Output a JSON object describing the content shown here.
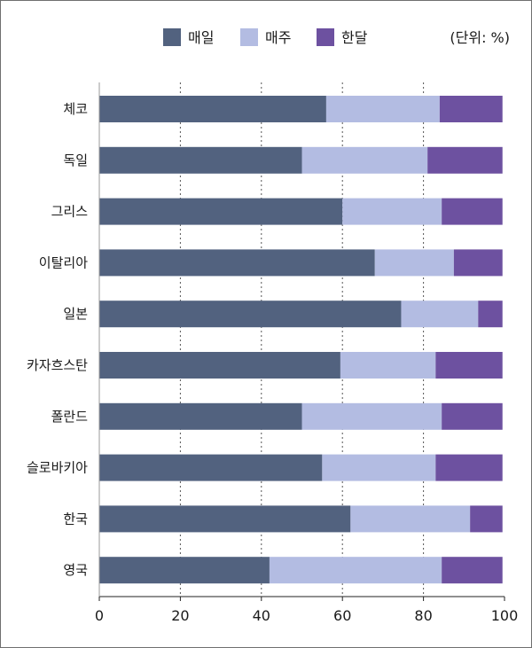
{
  "chart_data": {
    "type": "bar",
    "orientation": "horizontal",
    "stacked": true,
    "unit_note": "(단위: %)",
    "categories": [
      "체코",
      "독일",
      "그리스",
      "이탈리아",
      "일본",
      "카자흐스탄",
      "폴란드",
      "슬로바키아",
      "한국",
      "영국"
    ],
    "series": [
      {
        "name": "매일",
        "color": "#52627f",
        "values": [
          56,
          50,
          60,
          68,
          74.5,
          59.5,
          50,
          55,
          62,
          42
        ]
      },
      {
        "name": "매주",
        "color": "#b3bce2",
        "values": [
          28,
          31,
          24.5,
          19.5,
          19,
          23.5,
          34.5,
          28,
          29.5,
          42.5
        ]
      },
      {
        "name": "한달",
        "color": "#6d51a0",
        "values": [
          15.5,
          18.5,
          15,
          12,
          6,
          16.5,
          15,
          16.5,
          8,
          15
        ]
      }
    ],
    "xlim": [
      0,
      100
    ],
    "xticks": [
      0,
      20,
      40,
      60,
      80,
      100
    ],
    "grid": "vertical dashed",
    "legend_position": "top"
  }
}
